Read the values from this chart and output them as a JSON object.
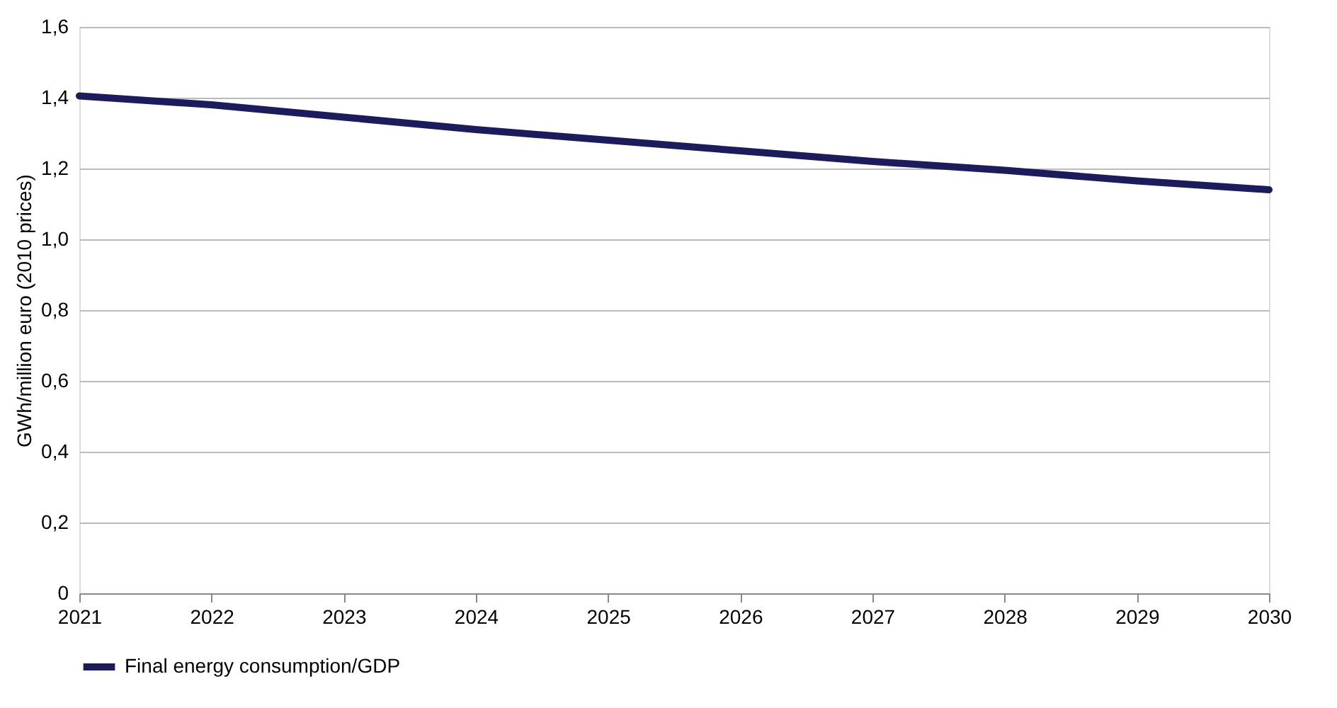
{
  "chart_data": {
    "type": "line",
    "ylabel": "GWh/million euro (2010 prices)",
    "x": [
      2021,
      2022,
      2023,
      2024,
      2025,
      2026,
      2027,
      2028,
      2029,
      2030
    ],
    "series": [
      {
        "name": "Final energy consumption/GDP",
        "color": "#1c1b5c",
        "values": [
          1.405,
          1.38,
          1.345,
          1.31,
          1.28,
          1.25,
          1.22,
          1.195,
          1.165,
          1.14
        ]
      }
    ],
    "xlim": [
      2021,
      2030
    ],
    "xticks": [
      2021,
      2022,
      2023,
      2024,
      2025,
      2026,
      2027,
      2028,
      2029,
      2030
    ],
    "ylim": [
      0,
      1.6
    ],
    "yticks": [
      {
        "value": 0,
        "label": "0"
      },
      {
        "value": 0.2,
        "label": "0,2"
      },
      {
        "value": 0.4,
        "label": "0,4"
      },
      {
        "value": 0.6,
        "label": "0,6"
      },
      {
        "value": 0.8,
        "label": "0,8"
      },
      {
        "value": 1.0,
        "label": "1,0"
      },
      {
        "value": 1.2,
        "label": "1,2"
      },
      {
        "value": 1.4,
        "label": "1,4"
      },
      {
        "value": 1.6,
        "label": "1,6"
      }
    ],
    "grid": "y",
    "legend": "bottom left",
    "marker": "none",
    "line_style": "solid"
  }
}
